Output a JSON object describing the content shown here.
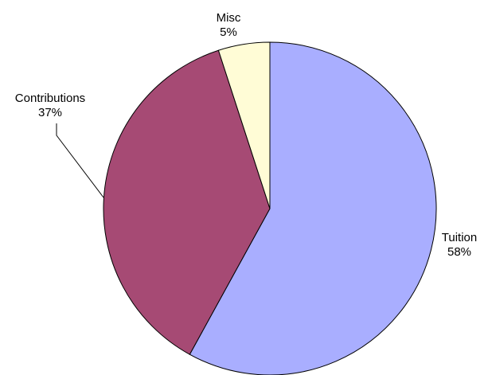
{
  "chart_data": {
    "type": "pie",
    "slices": [
      {
        "name": "Tuition",
        "value": 58,
        "label": "58%",
        "color": "#A9AEFF"
      },
      {
        "name": "Contributions",
        "value": 37,
        "label": "37%",
        "color": "#A64A74"
      },
      {
        "name": "Misc",
        "value": 5,
        "label": "5%",
        "color": "#FFFCD6"
      }
    ],
    "start": "12 o'clock",
    "direction": "clockwise",
    "legend": "none",
    "slice_border_color": "#000000"
  }
}
